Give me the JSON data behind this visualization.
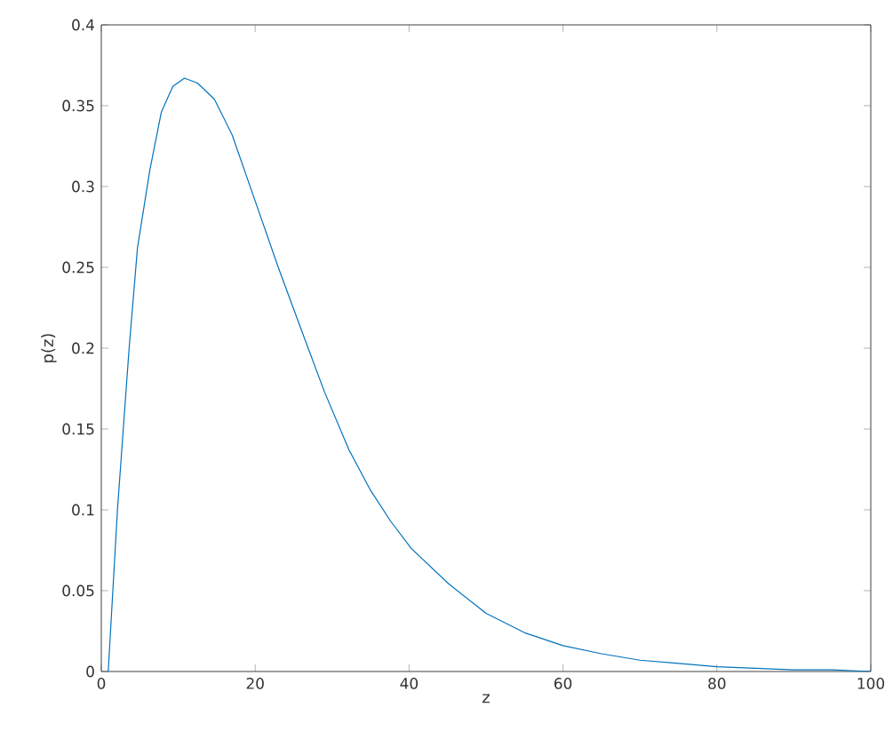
{
  "chart_data": {
    "type": "line",
    "xlabel": "z",
    "ylabel": "p(z)",
    "series": [
      {
        "color": "#0072bd",
        "x": [
          0.9,
          2.1,
          3.6,
          4.7,
          6.3,
          7.8,
          9.3,
          10.8,
          12.5,
          14.7,
          17.0,
          20.0,
          23.0,
          26.1,
          29.0,
          32.2,
          35.0,
          37.6,
          40.3,
          45.2,
          50.0,
          55.0,
          60.0,
          65.0,
          70.0,
          75.0,
          80.0,
          85.0,
          90.0,
          95.0,
          100.0
        ],
        "values": [
          0,
          0.1,
          0.199,
          0.262,
          0.31,
          0.346,
          0.362,
          0.367,
          0.364,
          0.354,
          0.332,
          0.291,
          0.25,
          0.21,
          0.173,
          0.137,
          0.112,
          0.093,
          0.076,
          0.054,
          0.036,
          0.024,
          0.016,
          0.011,
          0.007,
          0.005,
          0.003,
          0.002,
          0.001,
          0.001,
          0
        ]
      }
    ],
    "xlim": [
      0,
      100
    ],
    "ylim": [
      0,
      0.4
    ],
    "xticks": [
      0,
      20,
      40,
      60,
      80,
      100
    ],
    "yticks": [
      0,
      0.05,
      0.1,
      0.15,
      0.2,
      0.25,
      0.3,
      0.35,
      0.4
    ],
    "marker": "none",
    "line_style": "solid"
  }
}
